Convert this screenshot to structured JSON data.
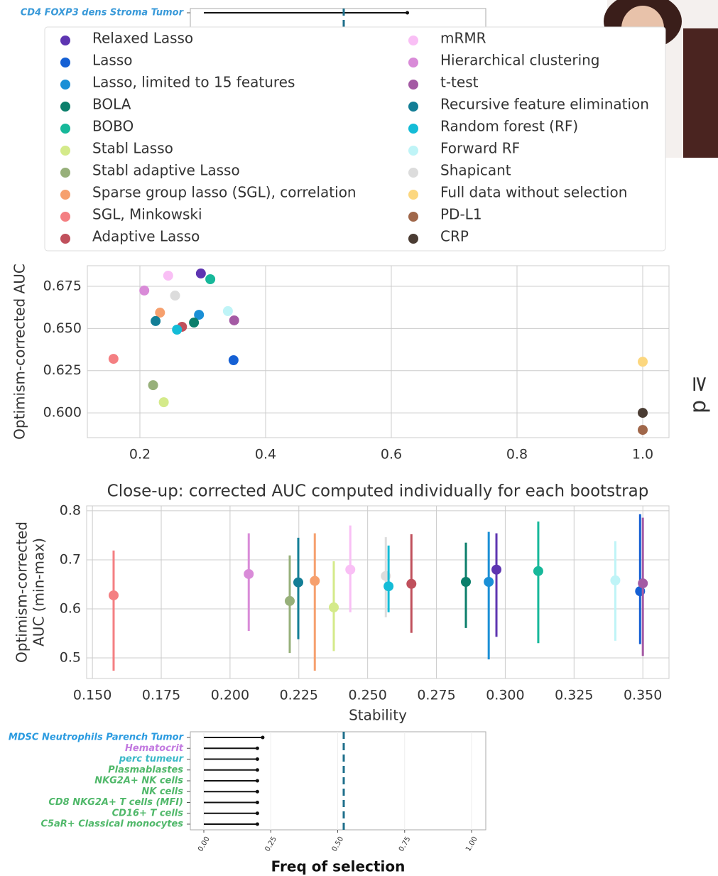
{
  "chart_data": [
    {
      "type": "lollipop",
      "categories": [
        "CD4 FOXP3 dens Stroma Tumor"
      ],
      "values": [
        0.76
      ],
      "label_colors": [
        "#3a9ad9"
      ],
      "color": "#111111",
      "xlim": [
        -0.0504,
        1.053
      ],
      "threshold": 0.5225,
      "threshold_color": "#1f6f8b"
    },
    {
      "type": "scatter",
      "ylabel": "Optimism-corrected AUC",
      "xlim": [
        0.1164,
        1.0418
      ],
      "ylim": [
        0.5853,
        0.6872
      ],
      "xticks": [
        0.2,
        0.4,
        0.6,
        0.8,
        {
          "value": 1.0,
          "label": "1.0"
        }
      ],
      "yticks": [
        {
          "value": 0.6,
          "label": "0.600"
        },
        {
          "value": 0.625,
          "label": "0.625"
        },
        {
          "value": 0.65,
          "label": "0.650"
        },
        {
          "value": 0.675,
          "label": "0.675"
        }
      ],
      "grid": true,
      "legend": "top",
      "series": [
        {
          "name": "Relaxed Lasso",
          "color": "#5e35b1",
          "x": [
            0.297
          ],
          "values": [
            0.6826
          ]
        },
        {
          "name": "Lasso",
          "color": "#1560d4",
          "x": [
            0.349
          ],
          "values": [
            0.6312
          ]
        },
        {
          "name": "Lasso, limited to 15 features",
          "color": "#1a8fd6",
          "x": [
            0.294
          ],
          "values": [
            0.6581
          ]
        },
        {
          "name": "BOLA",
          "color": "#0b7f6b",
          "x": [
            0.286
          ],
          "values": [
            0.6535
          ]
        },
        {
          "name": "BOBO",
          "color": "#17b89a",
          "x": [
            0.312
          ],
          "values": [
            0.6792
          ]
        },
        {
          "name": "Stabl Lasso",
          "color": "#d4ea8a",
          "x": [
            0.238
          ],
          "values": [
            0.6063
          ]
        },
        {
          "name": "Stabl adaptive Lasso",
          "color": "#97b07a",
          "x": [
            0.221
          ],
          "values": [
            0.6164
          ]
        },
        {
          "name": "Sparse group lasso (SGL), correlation",
          "color": "#f6a06e",
          "x": [
            0.232
          ],
          "values": [
            0.6594
          ]
        },
        {
          "name": "SGL, Minkowski",
          "color": "#f47f82",
          "x": [
            0.158
          ],
          "values": [
            0.632
          ]
        },
        {
          "name": "Adaptive Lasso",
          "color": "#c0505c",
          "x": [
            0.267
          ],
          "values": [
            0.651
          ]
        },
        {
          "name": "mRMR",
          "color": "#f9bff5",
          "x": [
            0.245
          ],
          "values": [
            0.6813
          ]
        },
        {
          "name": "Hierarchical clustering",
          "color": "#d98bd8",
          "x": [
            0.207
          ],
          "values": [
            0.6725
          ]
        },
        {
          "name": "t-test",
          "color": "#a45aa4",
          "x": [
            0.35
          ],
          "values": [
            0.6548
          ]
        },
        {
          "name": "Recursive feature elimination",
          "color": "#137e96",
          "x": [
            0.225
          ],
          "values": [
            0.6544
          ]
        },
        {
          "name": "Random forest (RF)",
          "color": "#14bcd7",
          "x": [
            0.259
          ],
          "values": [
            0.6493
          ]
        },
        {
          "name": "Forward RF",
          "color": "#bff4f7",
          "x": [
            0.34
          ],
          "values": [
            0.6603
          ]
        },
        {
          "name": "Shapicant",
          "color": "#dcdcdc",
          "x": [
            0.256
          ],
          "values": [
            0.6695
          ]
        },
        {
          "name": "Full data without selection",
          "color": "#fcd77f",
          "x": [
            1.0
          ],
          "values": [
            0.6303
          ]
        },
        {
          "name": "PD-L1",
          "color": "#a0674a",
          "x": [
            1.0
          ],
          "values": [
            0.5899
          ]
        },
        {
          "name": "CRP",
          "color": "#4a3c33",
          "x": [
            1.0
          ],
          "values": [
            0.6
          ]
        }
      ]
    },
    {
      "type": "errorbar",
      "title": "Close-up: corrected AUC computed individually for each bootstrap",
      "xlabel": "Stability",
      "ylabel": [
        "Optimism-corrected",
        "AUC (min-max)"
      ],
      "xlim": [
        0.1479,
        0.3595
      ],
      "ylim": [
        0.458,
        0.81
      ],
      "xticks": [
        {
          "value": 0.15,
          "label": "0.150"
        },
        {
          "value": 0.175,
          "label": "0.175"
        },
        {
          "value": 0.2,
          "label": "0.200"
        },
        {
          "value": 0.225,
          "label": "0.225"
        },
        {
          "value": 0.25,
          "label": "0.250"
        },
        {
          "value": 0.275,
          "label": "0.275"
        },
        {
          "value": 0.3,
          "label": "0.300"
        },
        {
          "value": 0.325,
          "label": "0.325"
        },
        {
          "value": 0.35,
          "label": "0.350"
        }
      ],
      "yticks": [
        0.5,
        0.6,
        0.7,
        0.8
      ],
      "grid": true,
      "series": [
        {
          "color": "#f47f82",
          "x": [
            0.1577
          ],
          "values": [
            0.6275
          ],
          "low": [
            0.474
          ],
          "high": [
            0.719
          ]
        },
        {
          "color": "#d98bd8",
          "x": [
            0.2068
          ],
          "values": [
            0.671
          ],
          "low": [
            0.555
          ],
          "high": [
            0.754
          ]
        },
        {
          "color": "#97b07a",
          "x": [
            0.2217
          ],
          "values": [
            0.616
          ],
          "low": [
            0.51
          ],
          "high": [
            0.709
          ]
        },
        {
          "color": "#137e96",
          "x": [
            0.2248
          ],
          "values": [
            0.654
          ],
          "low": [
            0.538
          ],
          "high": [
            0.745
          ]
        },
        {
          "color": "#f6a06e",
          "x": [
            0.2308
          ],
          "values": [
            0.657
          ],
          "low": [
            0.474
          ],
          "high": [
            0.754
          ]
        },
        {
          "color": "#d4ea8a",
          "x": [
            0.2377
          ],
          "values": [
            0.603
          ],
          "low": [
            0.514
          ],
          "high": [
            0.697
          ]
        },
        {
          "color": "#f9bff5",
          "x": [
            0.2437
          ],
          "values": [
            0.68
          ],
          "low": [
            0.593
          ],
          "high": [
            0.77
          ]
        },
        {
          "color": "#dcdcdc",
          "x": [
            0.2566
          ],
          "values": [
            0.667
          ],
          "low": [
            0.583
          ],
          "high": [
            0.746
          ]
        },
        {
          "color": "#14bcd7",
          "x": [
            0.2576
          ],
          "values": [
            0.646
          ],
          "low": [
            0.593
          ],
          "high": [
            0.729
          ]
        },
        {
          "color": "#c0505c",
          "x": [
            0.2659
          ],
          "values": [
            0.651
          ],
          "low": [
            0.551
          ],
          "high": [
            0.752
          ]
        },
        {
          "color": "#0b7f6b",
          "x": [
            0.2857
          ],
          "values": [
            0.655
          ],
          "low": [
            0.561
          ],
          "high": [
            0.735
          ]
        },
        {
          "color": "#1a8fd6",
          "x": [
            0.294
          ],
          "values": [
            0.655
          ],
          "low": [
            0.497
          ],
          "high": [
            0.757
          ]
        },
        {
          "color": "#5e35b1",
          "x": [
            0.2968
          ],
          "values": [
            0.68
          ],
          "low": [
            0.543
          ],
          "high": [
            0.754
          ]
        },
        {
          "color": "#17b89a",
          "x": [
            0.312
          ],
          "values": [
            0.677
          ],
          "low": [
            0.53
          ],
          "high": [
            0.778
          ]
        },
        {
          "color": "#bff4f7",
          "x": [
            0.34
          ],
          "values": [
            0.658
          ],
          "low": [
            0.535
          ],
          "high": [
            0.738
          ]
        },
        {
          "color": "#1560d4",
          "x": [
            0.349
          ],
          "values": [
            0.636
          ],
          "low": [
            0.528
          ],
          "high": [
            0.793
          ]
        },
        {
          "color": "#a45aa4",
          "x": [
            0.35
          ],
          "values": [
            0.652
          ],
          "low": [
            0.504
          ],
          "high": [
            0.786
          ]
        }
      ]
    },
    {
      "type": "lollipop",
      "categories": [
        "MDSC Neutrophils Parench Tumor",
        "Hematocrit",
        "perc tumeur",
        "Plasmablastes",
        "NKG2A+ NK cells",
        "NK cells",
        "CD8 NKG2A+ T cells (MFI)",
        "CD16+ T cells",
        "C5aR+ Classical monocytes"
      ],
      "values": [
        0.22,
        0.2,
        0.2,
        0.2,
        0.2,
        0.2,
        0.2,
        0.2,
        0.2
      ],
      "label_colors": [
        "#2b9be0",
        "#c27ae0",
        "#3bb8c8",
        "#50b86a",
        "#50b86a",
        "#50b86a",
        "#50b86a",
        "#50b86a",
        "#50b86a"
      ],
      "color": "#111111",
      "xlim": [
        -0.0504,
        1.053
      ],
      "xticks": [
        {
          "value": 0,
          "label": "0.00"
        },
        {
          "value": 0.25,
          "label": "0.25"
        },
        {
          "value": 0.5,
          "label": "0.50"
        },
        {
          "value": 0.75,
          "label": "0.75"
        },
        {
          "value": 1,
          "label": "1.00"
        }
      ],
      "xlabel": "Freq of selection",
      "threshold": 0.5225,
      "threshold_color": "#1f6f8b"
    }
  ],
  "side_text": "≥ d"
}
